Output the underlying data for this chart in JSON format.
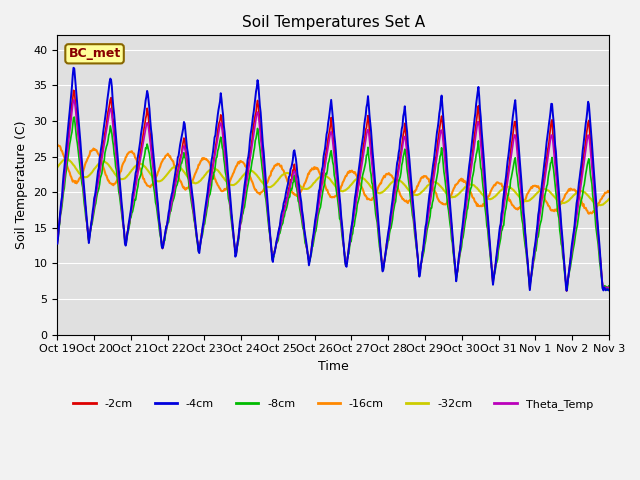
{
  "title": "Soil Temperatures Set A",
  "xlabel": "Time",
  "ylabel": "Soil Temperature (C)",
  "ylim": [
    0,
    42
  ],
  "yticks": [
    0,
    5,
    10,
    15,
    20,
    25,
    30,
    35,
    40
  ],
  "annotation": "BC_met",
  "plot_bg_color": "#e0e0e0",
  "fig_bg_color": "#f2f2f2",
  "series": {
    "-2cm": {
      "color": "#dd0000",
      "lw": 1.2
    },
    "-4cm": {
      "color": "#0000dd",
      "lw": 1.4
    },
    "-8cm": {
      "color": "#00bb00",
      "lw": 1.2
    },
    "-16cm": {
      "color": "#ff8800",
      "lw": 1.5
    },
    "-32cm": {
      "color": "#cccc00",
      "lw": 1.5
    },
    "Theta_Temp": {
      "color": "#bb00bb",
      "lw": 1.2
    }
  },
  "tick_labels": [
    "Oct 19",
    "Oct 20",
    "Oct 21",
    "Oct 22",
    "Oct 23",
    "Oct 24",
    "Oct 25",
    "Oct 26",
    "Oct 27",
    "Oct 28",
    "Oct 29",
    "Oct 30",
    "Oct 31",
    "Nov 1",
    "Nov 2",
    "Nov 3"
  ],
  "num_points_per_day": 48,
  "num_days": 15
}
